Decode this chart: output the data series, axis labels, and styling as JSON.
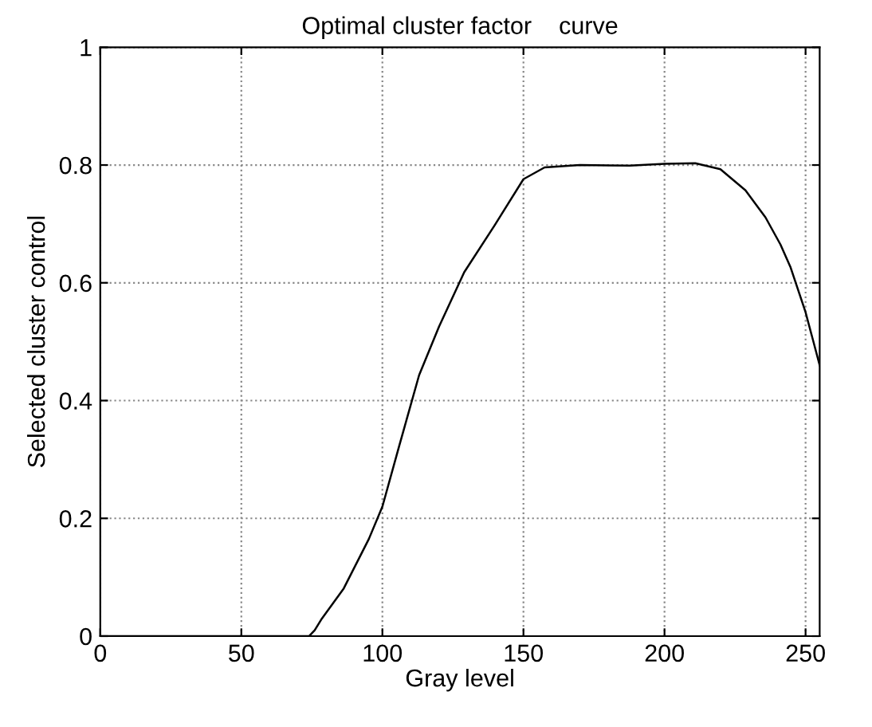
{
  "chart_data": {
    "type": "line",
    "title": "Optimal cluster factor    curve",
    "xlabel": "Gray level",
    "ylabel": "Selected cluster control",
    "x": [
      0,
      20,
      40,
      60,
      74,
      76,
      78.3,
      86.3,
      95.2,
      100,
      105.9,
      113,
      120.1,
      129,
      139.7,
      150,
      157.5,
      170,
      187.7,
      200,
      210.9,
      219.8,
      228.7,
      235.8,
      241.1,
      244.7,
      250,
      255
    ],
    "series": [
      {
        "color": "#000000",
        "values": [
          0,
          0,
          0,
          0,
          0,
          0.01,
          0.028,
          0.081,
          0.165,
          0.22,
          0.322,
          0.443,
          0.526,
          0.618,
          0.697,
          0.776,
          0.796,
          0.8,
          0.799,
          0.802,
          0.803,
          0.793,
          0.757,
          0.711,
          0.665,
          0.626,
          0.55,
          0.46
        ]
      }
    ],
    "xlim": [
      0,
      255
    ],
    "ylim": [
      0,
      1
    ],
    "xticks": [
      0,
      50,
      100,
      150,
      200,
      250
    ],
    "yticks": [
      0,
      0.2,
      0.4,
      0.6,
      0.8,
      1
    ],
    "grid": true,
    "line_style": "solid"
  }
}
